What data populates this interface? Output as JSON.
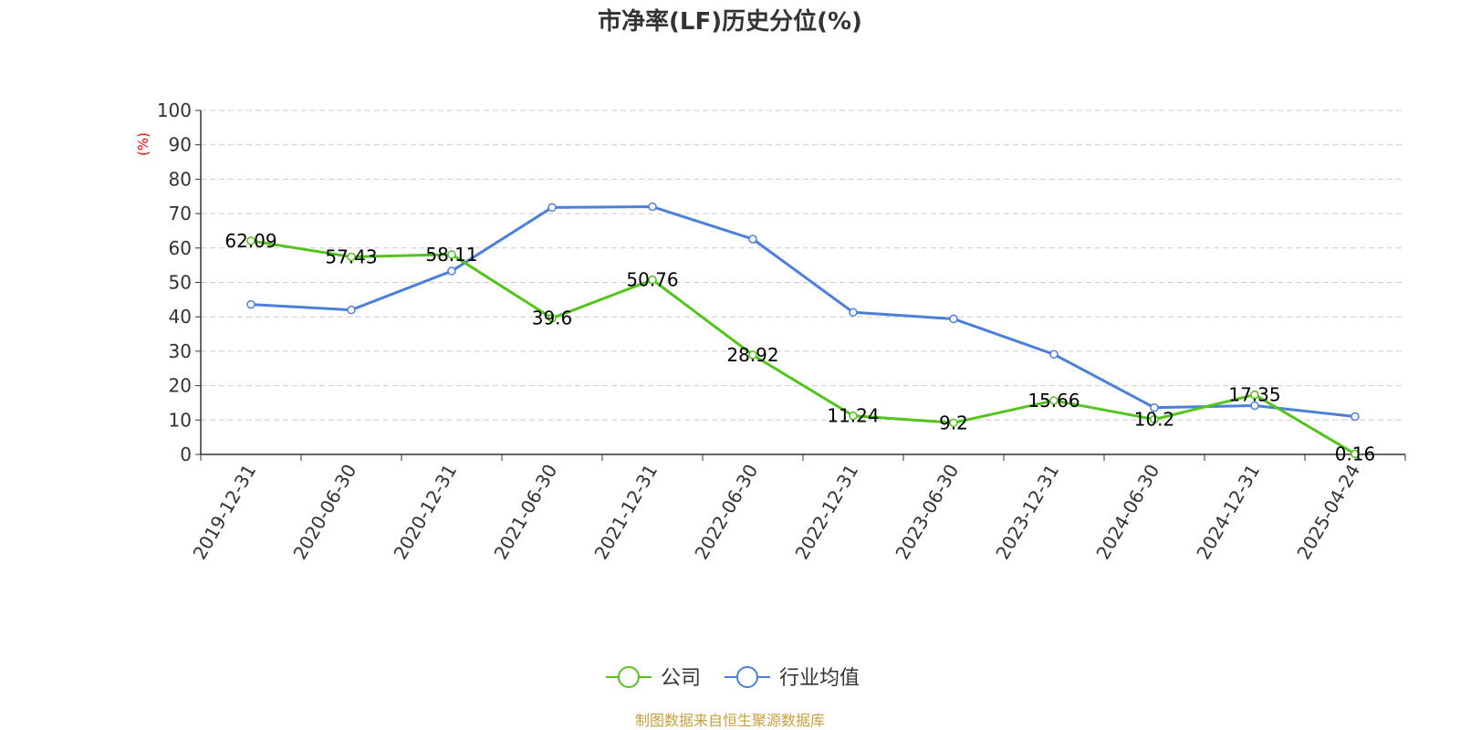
{
  "chart_data": {
    "type": "line",
    "title": "市净率(LF)历史分位(%)",
    "ylabel": "(%)",
    "ylim": [
      0,
      100
    ],
    "yticks": [
      0,
      10,
      20,
      30,
      40,
      50,
      60,
      70,
      80,
      90,
      100
    ],
    "grid": true,
    "legend_position": "bottom",
    "categories": [
      "2019-12-31",
      "2020-06-30",
      "2020-12-31",
      "2021-06-30",
      "2021-12-31",
      "2022-06-30",
      "2022-12-31",
      "2023-06-30",
      "2023-12-31",
      "2024-06-30",
      "2024-12-31",
      "2025-04-24"
    ],
    "series": [
      {
        "name": "公司",
        "color": "#52c41a",
        "labels": true,
        "values": [
          62.09,
          57.43,
          58.11,
          39.6,
          50.76,
          28.92,
          11.24,
          9.2,
          15.66,
          10.2,
          17.35,
          0.16
        ]
      },
      {
        "name": "行业均值",
        "color": "#4a7fdc",
        "labels": false,
        "values": [
          43.6,
          42,
          53.3,
          71.8,
          72,
          62.6,
          41.3,
          39.4,
          29.1,
          13.6,
          14.2,
          11
        ]
      }
    ]
  },
  "source": "制图数据来自恒生聚源数据库"
}
